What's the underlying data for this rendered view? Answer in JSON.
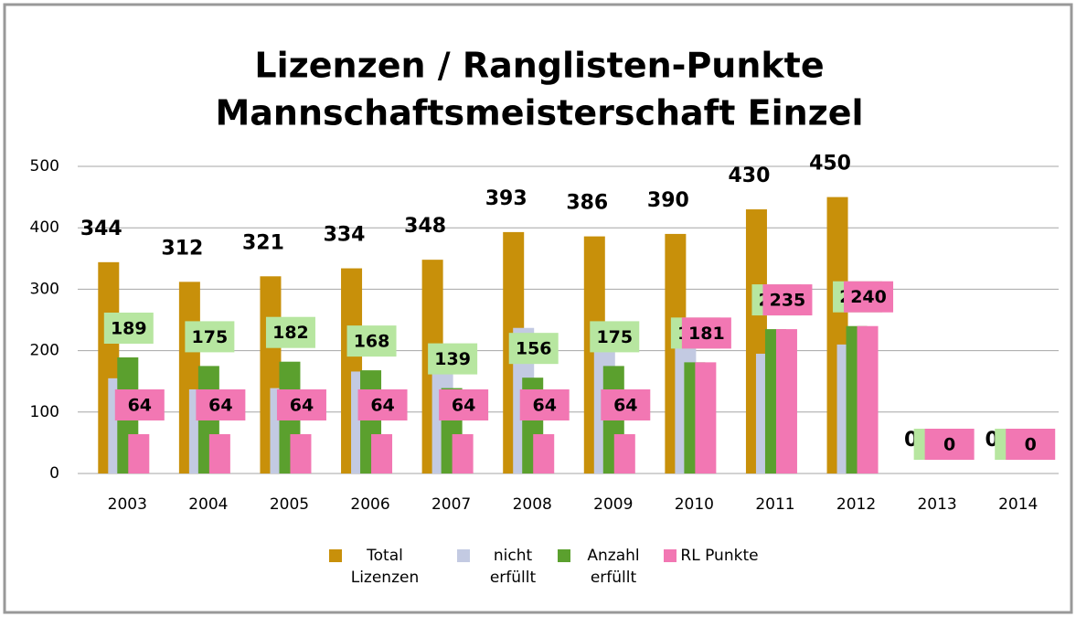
{
  "chart_data": {
    "type": "bar",
    "title": [
      "Lizenzen / Ranglisten-Punkte",
      "Mannschaftsmeisterschaft Einzel"
    ],
    "categories": [
      "2003",
      "2004",
      "2005",
      "2006",
      "2007",
      "2008",
      "2009",
      "2010",
      "2011",
      "2012",
      "2013",
      "2014"
    ],
    "series": [
      {
        "name": "Total Lizenzen",
        "color": "#c8900a",
        "values": [
          344,
          312,
          321,
          334,
          348,
          393,
          386,
          390,
          430,
          450,
          0,
          0
        ],
        "labels": "plain"
      },
      {
        "name": "nicht erfüllt",
        "color": "#c3cae2",
        "values": [
          155,
          137,
          139,
          166,
          209,
          237,
          211,
          209,
          195,
          210,
          0,
          0
        ]
      },
      {
        "name": "Anzahl erfüllt",
        "color": "#5ba02e",
        "values": [
          189,
          175,
          182,
          168,
          139,
          156,
          175,
          181,
          235,
          240,
          0,
          0
        ],
        "labels": "#b7e6a0"
      },
      {
        "name": "RL Punkte",
        "color": "#f277b3",
        "values": [
          64,
          64,
          64,
          64,
          64,
          64,
          64,
          181,
          235,
          240,
          0,
          0
        ],
        "labels": "#f277b3"
      }
    ],
    "ylim": [
      0,
      500
    ],
    "yticks": [
      0,
      100,
      200,
      300,
      400,
      500
    ],
    "grid": true,
    "legend": "bottom"
  }
}
